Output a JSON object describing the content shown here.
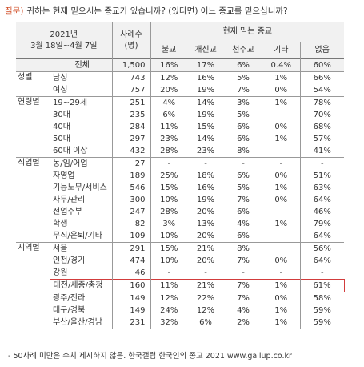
{
  "question": {
    "prefix": "질문)",
    "text": "귀하는 현재 믿으시는 종교가 있습니까? (있다면) 어느 종교를 믿으십니까?"
  },
  "table": {
    "period": "2021년",
    "dates": "3월 18일~4월 7일",
    "n_header": "사례수",
    "n_unit": "(명)",
    "group_header": "현재 믿는 종교",
    "columns": [
      "불교",
      "개신교",
      "천주교",
      "기타",
      "없음"
    ],
    "total": {
      "label": "전체",
      "n": "1,500",
      "cells": [
        "16%",
        "17%",
        "6%",
        "0.4%",
        "60%"
      ]
    },
    "groups": [
      {
        "name": "성별",
        "rows": [
          {
            "label": "남성",
            "n": "743",
            "cells": [
              "12%",
              "16%",
              "5%",
              "1%",
              "66%"
            ]
          },
          {
            "label": "여성",
            "n": "757",
            "cells": [
              "20%",
              "19%",
              "7%",
              "0%",
              "54%"
            ]
          }
        ]
      },
      {
        "name": "연령별",
        "rows": [
          {
            "label": "19~29세",
            "n": "251",
            "cells": [
              "4%",
              "14%",
              "3%",
              "1%",
              "78%"
            ]
          },
          {
            "label": "30대",
            "n": "235",
            "cells": [
              "6%",
              "19%",
              "5%",
              null,
              "70%"
            ]
          },
          {
            "label": "40대",
            "n": "284",
            "cells": [
              "11%",
              "15%",
              "6%",
              "0%",
              "68%"
            ]
          },
          {
            "label": "50대",
            "n": "297",
            "cells": [
              "23%",
              "14%",
              "6%",
              "1%",
              "57%"
            ]
          },
          {
            "label": "60대 이상",
            "n": "432",
            "cells": [
              "28%",
              "23%",
              "8%",
              null,
              "41%"
            ]
          }
        ]
      },
      {
        "name": "직업별",
        "rows": [
          {
            "label": "농/임/어업",
            "n": "27",
            "cells": [
              "-",
              "-",
              "-",
              "-",
              "-"
            ]
          },
          {
            "label": "자영업",
            "n": "189",
            "cells": [
              "25%",
              "18%",
              "6%",
              "0%",
              "51%"
            ]
          },
          {
            "label": "기능노무/서비스",
            "n": "546",
            "cells": [
              "15%",
              "16%",
              "5%",
              "1%",
              "63%"
            ]
          },
          {
            "label": "사무/관리",
            "n": "300",
            "cells": [
              "10%",
              "19%",
              "7%",
              "0%",
              "64%"
            ]
          },
          {
            "label": "전업주부",
            "n": "247",
            "cells": [
              "28%",
              "20%",
              "6%",
              null,
              "46%"
            ]
          },
          {
            "label": "학생",
            "n": "82",
            "cells": [
              "3%",
              "13%",
              "4%",
              "1%",
              "79%"
            ]
          },
          {
            "label": "무직/은퇴/기타",
            "n": "109",
            "cells": [
              "10%",
              "20%",
              "6%",
              null,
              "64%"
            ]
          }
        ]
      },
      {
        "name": "지역별",
        "rows": [
          {
            "label": "서울",
            "n": "291",
            "cells": [
              "15%",
              "21%",
              "8%",
              null,
              "56%"
            ]
          },
          {
            "label": "인천/경기",
            "n": "474",
            "cells": [
              "10%",
              "20%",
              "7%",
              "0%",
              "64%"
            ]
          },
          {
            "label": "강원",
            "n": "46",
            "cells": [
              "-",
              "-",
              "-",
              "-",
              "-"
            ]
          },
          {
            "label": "대전/세종/충청",
            "n": "160",
            "cells": [
              "11%",
              "21%",
              "7%",
              "1%",
              "61%"
            ],
            "highlight": true
          },
          {
            "label": "광주/전라",
            "n": "149",
            "cells": [
              "12%",
              "22%",
              "7%",
              "0%",
              "58%"
            ]
          },
          {
            "label": "대구/경북",
            "n": "149",
            "cells": [
              "24%",
              "12%",
              "4%",
              "1%",
              "59%"
            ]
          },
          {
            "label": "부산/울산/경남",
            "n": "231",
            "cells": [
              "32%",
              "6%",
              "2%",
              "1%",
              "59%"
            ]
          }
        ]
      }
    ]
  },
  "footer": "- 50사례 미만은 수치 제시하지 않음. 한국갤럽 한국인의 종교 2021 www.gallup.co.kr"
}
